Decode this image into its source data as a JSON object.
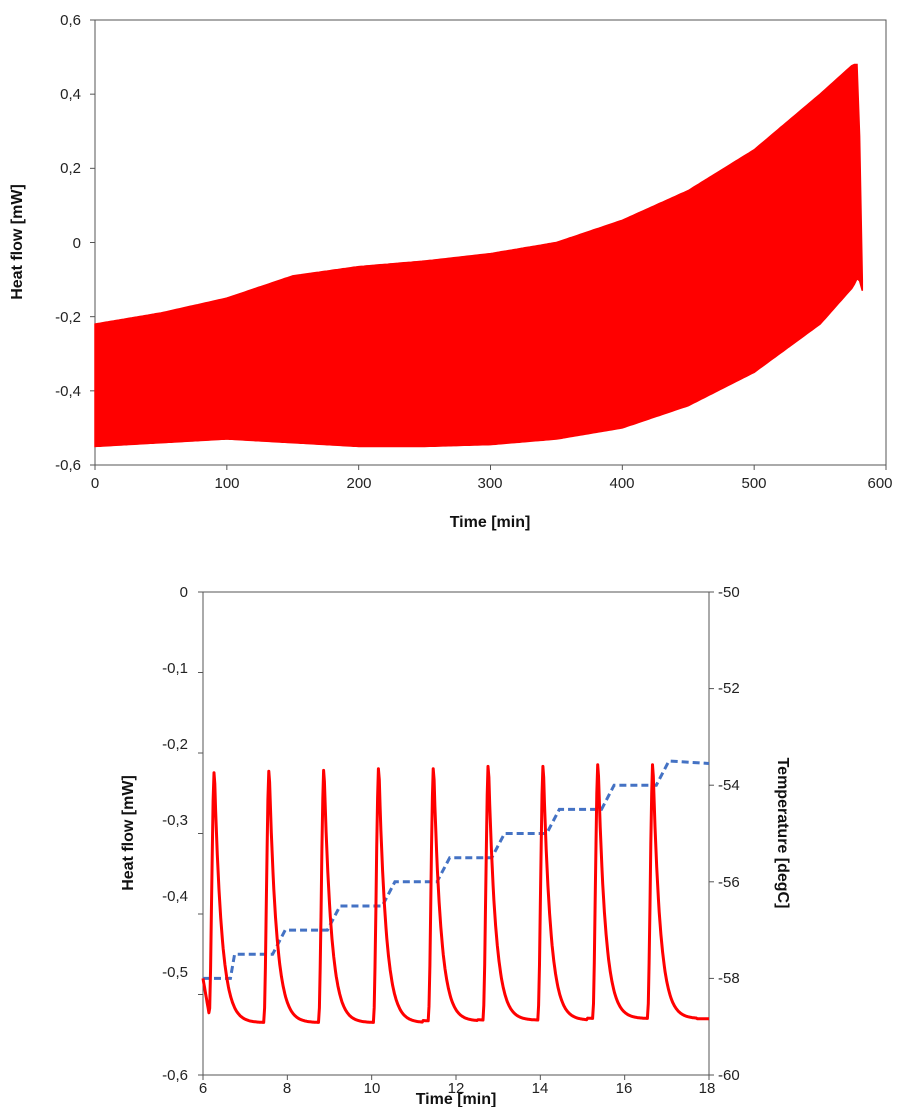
{
  "colors": {
    "heat_flow": "#ff0000",
    "temperature": "#4472c4",
    "axis": "#555555"
  },
  "chart_data": [
    {
      "type": "area",
      "xlabel": "Time [min]",
      "ylabel": "Heat flow [mW]",
      "xlim": [
        0,
        600
      ],
      "ylim": [
        -0.6,
        0.6
      ],
      "x_ticks": [
        0,
        100,
        200,
        300,
        400,
        500,
        600
      ],
      "y_ticks": [
        -0.6,
        -0.4,
        -0.2,
        0,
        0.2,
        0.4,
        0.6
      ],
      "x_tick_labels": [
        "0",
        "100",
        "200",
        "300",
        "400",
        "500",
        "600"
      ],
      "y_tick_labels": [
        "-0,6",
        "-0,4",
        "-0,2",
        "0",
        "0,2",
        "0,4",
        "0,6"
      ],
      "grid": false,
      "series": [
        {
          "kind": "oscillation-envelope",
          "color": "#ff0000",
          "x": [
            0,
            50,
            100,
            150,
            200,
            250,
            300,
            350,
            400,
            450,
            500,
            550,
            575,
            579,
            582
          ],
          "upper": [
            -0.22,
            -0.19,
            -0.15,
            -0.09,
            -0.065,
            -0.05,
            -0.03,
            0.0,
            0.06,
            0.14,
            0.25,
            0.4,
            0.48,
            0.48,
            -0.1
          ],
          "lower": [
            -0.55,
            -0.54,
            -0.53,
            -0.54,
            -0.55,
            -0.55,
            -0.545,
            -0.53,
            -0.5,
            -0.44,
            -0.35,
            -0.22,
            -0.12,
            -0.09,
            -0.13
          ]
        }
      ]
    },
    {
      "type": "line",
      "xlabel": "Time [min]",
      "ylabel": "Heat flow [mW]",
      "y2label": "Temperature [degC]",
      "xlim": [
        6,
        18
      ],
      "ylim": [
        -0.6,
        0
      ],
      "y2lim": [
        -60,
        -50
      ],
      "x_ticks": [
        6,
        8,
        10,
        12,
        14,
        16,
        18
      ],
      "y_ticks": [
        -0.6,
        -0.5,
        -0.4,
        -0.3,
        -0.2,
        -0.1,
        0
      ],
      "y2_ticks": [
        -60,
        -58,
        -56,
        -54,
        -52,
        -50
      ],
      "x_tick_labels": [
        "6",
        "8",
        "10",
        "12",
        "14",
        "16",
        "18"
      ],
      "y_tick_labels": [
        "-0,6",
        "-0,5",
        "-0,4",
        "-0,3",
        "-0,2",
        "-0,1",
        "0"
      ],
      "y2_tick_labels": [
        "-60",
        "-58",
        "-56",
        "-54",
        "-52",
        "-50"
      ],
      "grid": false,
      "series": [
        {
          "kind": "periodic-pulse",
          "axis": "left",
          "color": "#ff0000",
          "start": 6,
          "period": 1.3,
          "peak_offset": 0.27,
          "cycles": 9,
          "peaks": [
            -0.22,
            -0.218,
            -0.217,
            -0.215,
            -0.215,
            -0.212,
            -0.212,
            -0.21,
            -0.21
          ],
          "baselines": [
            -0.535,
            -0.535,
            -0.535,
            -0.535,
            -0.533,
            -0.532,
            -0.532,
            -0.53,
            -0.53
          ],
          "initial_value": -0.48,
          "end_value": -0.53
        },
        {
          "kind": "step",
          "axis": "right",
          "color": "#4472c4",
          "dashed": true,
          "x": [
            6.0,
            6.65,
            6.75,
            7.65,
            7.95,
            8.95,
            9.25,
            10.25,
            10.55,
            11.55,
            11.85,
            12.85,
            13.15,
            14.15,
            14.45,
            15.45,
            15.75,
            16.75,
            17.05,
            18.0
          ],
          "y": [
            -58.0,
            -58.0,
            -57.5,
            -57.5,
            -57.0,
            -57.0,
            -56.5,
            -56.5,
            -56.0,
            -56.0,
            -55.5,
            -55.5,
            -55.0,
            -55.0,
            -54.5,
            -54.5,
            -54.0,
            -54.0,
            -53.5,
            -53.55
          ]
        }
      ]
    }
  ]
}
